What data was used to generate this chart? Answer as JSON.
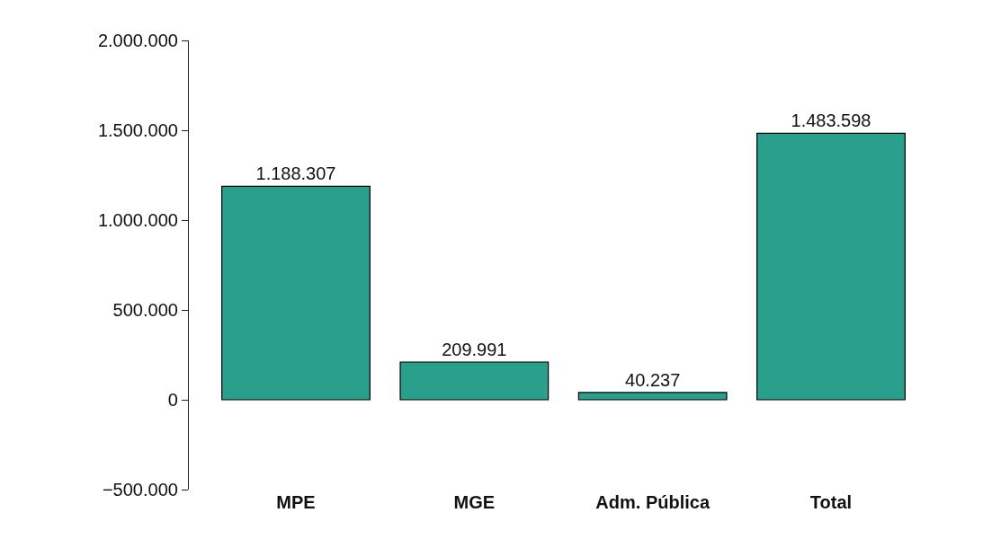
{
  "chart_data": {
    "type": "bar",
    "categories": [
      "MPE",
      "MGE",
      "Adm. Pública",
      "Total"
    ],
    "values": [
      1188307,
      209991,
      40237,
      1483598
    ],
    "value_labels": [
      "1.188.307",
      "209.991",
      "40.237",
      "1.483.598"
    ],
    "color": "#2aa08c",
    "ylim": [
      -500000,
      2000000
    ],
    "yticks": [
      {
        "value": -500000,
        "label": "−500.000"
      },
      {
        "value": 0,
        "label": "0"
      },
      {
        "value": 500000,
        "label": "500.000"
      },
      {
        "value": 1000000,
        "label": "1.000.000"
      },
      {
        "value": 1500000,
        "label": "1.500.000"
      },
      {
        "value": 2000000,
        "label": "2.000.000"
      }
    ],
    "grid": false
  }
}
